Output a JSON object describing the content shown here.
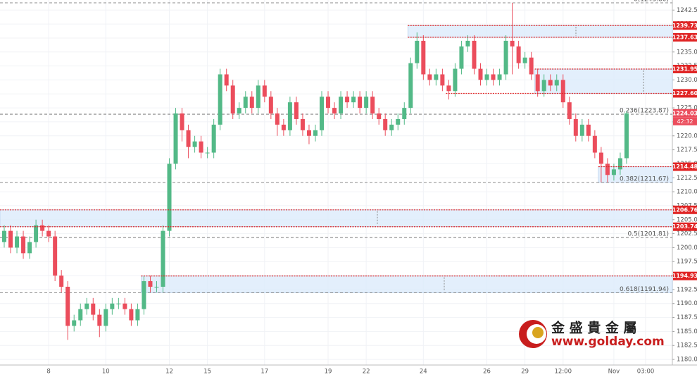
{
  "chart_data": {
    "type": "candlestick",
    "categories": [
      null,
      null,
      null,
      null,
      null,
      null,
      null,
      "8",
      null,
      null,
      null,
      null,
      null,
      null,
      null,
      null,
      "10",
      null,
      null,
      null,
      null,
      null,
      null,
      null,
      null,
      null,
      "12",
      null,
      null,
      null,
      null,
      null,
      "15",
      null,
      null,
      null,
      null,
      null,
      null,
      null,
      null,
      "17",
      null,
      null,
      null,
      null,
      null,
      null,
      null,
      null,
      null,
      "19",
      null,
      null,
      null,
      null,
      null,
      "22",
      null,
      null,
      null,
      null,
      null,
      null,
      null,
      null,
      "24",
      null,
      null,
      null,
      null,
      null,
      null,
      null,
      null,
      null,
      "26",
      null,
      null,
      null,
      null,
      null,
      "29",
      null,
      null,
      null,
      null,
      null,
      "12:00",
      null,
      null,
      null,
      null,
      null,
      null,
      null,
      "Nov",
      null,
      null,
      null,
      null,
      "03:00",
      null,
      null
    ],
    "open": [
      1201,
      1203,
      1200,
      1202,
      1199,
      1201,
      1204,
      1203,
      1202,
      1195,
      1193,
      1186,
      1187,
      1189,
      1190,
      1188,
      1186,
      1189,
      1190,
      1190,
      1189,
      1187,
      1189,
      1194,
      1193,
      1193,
      1203,
      1215,
      1224,
      1221,
      1218,
      1219,
      1217,
      1217,
      1222,
      1231,
      1229,
      1224,
      1225,
      1227,
      1225,
      1229,
      1227,
      1224,
      1222,
      1221,
      1226,
      1223,
      1221,
      1220,
      1221,
      1227,
      1225,
      1224,
      1227,
      1226,
      1227,
      1225,
      1227,
      1224,
      1223,
      1221,
      1222,
      1223,
      1225,
      1233,
      1237,
      1231,
      1230,
      1231,
      1229,
      1228,
      1232,
      1236,
      1237,
      1232,
      1230,
      1231,
      1230,
      1231,
      1237,
      1236,
      1233,
      1234,
      1231,
      1228,
      1230,
      1229,
      1230,
      1226,
      1223,
      1220,
      1222,
      1220,
      1217,
      1215,
      1213,
      1214,
      1216,
      null,
      null,
      null,
      null,
      null
    ],
    "high": [
      1204,
      1204,
      1203,
      1203,
      1202,
      1205,
      1205,
      1204,
      1203,
      1196,
      1194,
      1188,
      1190,
      1191,
      1191,
      1189,
      1190,
      1191,
      1191,
      1191,
      1190,
      1190,
      1195,
      1195,
      1194,
      1204,
      1216,
      1225,
      1225,
      1222,
      1220,
      1220,
      1218,
      1223,
      1232,
      1232,
      1230,
      1226,
      1228,
      1228,
      1230,
      1230,
      1228,
      1225,
      1223,
      1227,
      1227,
      1224,
      1222,
      1222,
      1228,
      1228,
      1226,
      1228,
      1228,
      1228,
      1228,
      1228,
      1228,
      1225,
      1224,
      1223,
      1224,
      1226,
      1234,
      1238.5,
      1238,
      1232,
      1232,
      1232,
      1230,
      1233,
      1237,
      1238,
      1238,
      1233,
      1232,
      1232,
      1232,
      1238,
      1243.8,
      1237,
      1235,
      1235,
      1232,
      1231,
      1231,
      1231,
      1231,
      1227,
      1224,
      1223,
      1223,
      1221,
      1218,
      1216,
      1215,
      1217,
      1224.5,
      null,
      null,
      null,
      null,
      null
    ],
    "low": [
      1200,
      1199,
      1199,
      1198,
      1198,
      1200,
      1202,
      1201,
      1194,
      1192,
      1183.5,
      1185,
      1186,
      1188,
      1187,
      1184,
      1185,
      1188,
      1189,
      1188,
      1186,
      1186,
      1188,
      1192,
      1192,
      1192,
      1202,
      1214,
      1219,
      1216,
      1217,
      1216,
      1216,
      1216,
      1221,
      1228,
      1223,
      1223,
      1224,
      1224,
      1224,
      1226,
      1223,
      1220,
      1220,
      1220,
      1222,
      1220,
      1218.5,
      1219,
      1220,
      1224,
      1223,
      1223,
      1225,
      1225,
      1224,
      1224,
      1223,
      1222,
      1220,
      1220,
      1221,
      1222,
      1224,
      1232,
      1230,
      1229,
      1229,
      1228,
      1226.5,
      1227,
      1231,
      1235,
      1231,
      1229,
      1229,
      1229,
      1229,
      1230,
      1231,
      1232,
      1232,
      1230,
      1227,
      1227,
      1228,
      1228,
      1225,
      1222,
      1219,
      1219,
      1219,
      1216,
      1211.7,
      1211.7,
      1212,
      1213,
      1215,
      null,
      null,
      null,
      null,
      null
    ],
    "close": [
      1203,
      1200,
      1202,
      1199,
      1201,
      1204,
      1203,
      1202,
      1195,
      1193,
      1186,
      1187,
      1189,
      1190,
      1188,
      1186,
      1189,
      1190,
      1190,
      1189,
      1187,
      1189,
      1194,
      1193,
      1193,
      1203,
      1215,
      1224,
      1221,
      1218,
      1219,
      1217,
      1217,
      1222,
      1231,
      1229,
      1224,
      1225,
      1227,
      1225,
      1229,
      1227,
      1224,
      1222,
      1221,
      1226,
      1223,
      1221,
      1220,
      1221,
      1227,
      1225,
      1224,
      1227,
      1226,
      1227,
      1225,
      1227,
      1224,
      1223,
      1221,
      1222,
      1223,
      1225,
      1233,
      1237,
      1231,
      1230,
      1231,
      1229,
      1228,
      1232,
      1236,
      1237,
      1232,
      1230,
      1231,
      1230,
      1231,
      1237,
      1236,
      1233,
      1234,
      1231,
      1228,
      1230,
      1229,
      1230,
      1226,
      1223,
      1220,
      1222,
      1220,
      1217,
      1215,
      1213,
      1214,
      1216,
      1224.03,
      null,
      null,
      null,
      null,
      null
    ],
    "up_color": "#53b987",
    "down_color": "#eb4d5c",
    "ylim": [
      1179,
      1244.3
    ],
    "yticks": [
      {
        "value": 1180,
        "label": "1180.00"
      },
      {
        "value": 1182.5,
        "label": "1182.50"
      },
      {
        "value": 1185,
        "label": "1185.00"
      },
      {
        "value": 1187.5,
        "label": "1187.50"
      },
      {
        "value": 1190,
        "label": "1190.00"
      },
      {
        "value": 1192.5,
        "label": "1192.50"
      },
      {
        "value": 1195,
        "label": "1195.00"
      },
      {
        "value": 1197.5,
        "label": "1197.50"
      },
      {
        "value": 1200,
        "label": "1200.00"
      },
      {
        "value": 1202.5,
        "label": "1202.50"
      },
      {
        "value": 1205,
        "label": "1205.00"
      },
      {
        "value": 1207.5,
        "label": "1207.50"
      },
      {
        "value": 1210,
        "label": "1210.00"
      },
      {
        "value": 1212.5,
        "label": "1212.50"
      },
      {
        "value": 1215,
        "label": "1215.00"
      },
      {
        "value": 1217.5,
        "label": "1217.50"
      },
      {
        "value": 1220,
        "label": "1220.00"
      },
      {
        "value": 1222.5,
        "label": "1222.50"
      },
      {
        "value": 1225,
        "label": "1225.00"
      },
      {
        "value": 1227.5,
        "label": "1227.50"
      },
      {
        "value": 1230,
        "label": "1230.00"
      },
      {
        "value": 1232.5,
        "label": "1232.50"
      },
      {
        "value": 1235,
        "label": "1235.00"
      },
      {
        "value": 1237.5,
        "label": "1237.50"
      },
      {
        "value": 1240,
        "label": "1240.00"
      },
      {
        "value": 1242.5,
        "label": "1242.50"
      }
    ],
    "grid": true,
    "zones": [
      {
        "top": 1239.73,
        "bottom": 1237.63
      },
      {
        "top": 1231.95,
        "bottom": 1227.6
      },
      {
        "top": 1214.48,
        "bottom": 1211.67
      },
      {
        "top": 1206.76,
        "bottom": 1203.74
      },
      {
        "top": 1194.93,
        "bottom": 1191.94
      }
    ],
    "price_levels": [
      1239.73,
      1237.63,
      1231.95,
      {
        "value": 1227.6,
        "label": "1227.60"
      },
      1214.48,
      1206.76,
      1203.74,
      1194.93
    ],
    "fib_levels": [
      {
        "value": 1243.8,
        "label": "0(1243.80)"
      },
      {
        "value": 1223.87,
        "label": "0.236(1223.87)"
      },
      {
        "value": 1211.67,
        "label": "0.382(1211.67)"
      },
      {
        "value": 1201.81,
        "label": "0.5(1201.81)"
      },
      {
        "value": 1191.94,
        "label": "0.618(1191.94)"
      }
    ],
    "last_price": 1224.03,
    "countdown": "42:32",
    "watermark": {
      "name": "金 盛 貴 金 屬",
      "url": "www.golday.com"
    }
  }
}
